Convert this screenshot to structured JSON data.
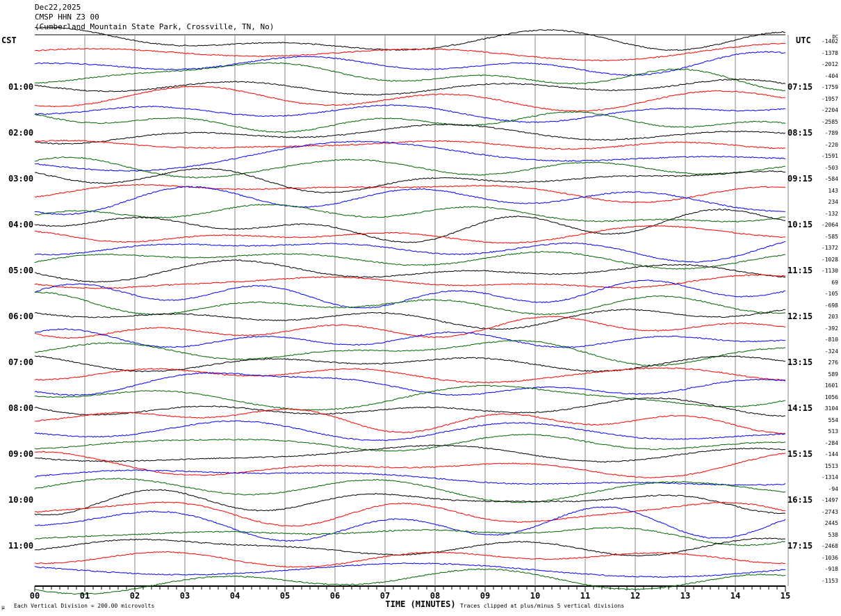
{
  "header": {
    "date": "Dec22,2025",
    "station": "CMSP HHN Z3 00",
    "location": "(Cumberland Mountain State Park, Crossville, TN, No)"
  },
  "left_label": "CST",
  "right_label": "UTC",
  "dc_label": "DC",
  "chart_data": {
    "type": "line",
    "subtype": "helicorder",
    "title": "CMSP HHN Z3 00",
    "xlabel": "TIME (MINUTES)",
    "xlim": [
      0,
      15
    ],
    "x_ticks": [
      "00",
      "01",
      "02",
      "03",
      "04",
      "05",
      "06",
      "07",
      "08",
      "09",
      "10",
      "11",
      "12",
      "13",
      "14",
      "15"
    ],
    "minutes_per_line": 15,
    "line_count": 48,
    "series_colors": [
      "#000000",
      "#ff0000",
      "#0000ff",
      "#006400"
    ],
    "cst_hour_labels": [
      "01:00",
      "02:00",
      "03:00",
      "04:00",
      "05:00",
      "06:00",
      "07:00",
      "08:00",
      "09:00",
      "10:00",
      "11:00"
    ],
    "utc_hour_labels": [
      "07:15",
      "08:15",
      "09:15",
      "10:15",
      "11:15",
      "12:15",
      "13:15",
      "14:15",
      "15:15",
      "16:15",
      "17:15"
    ],
    "dc_offsets": [
      "-1402",
      "-1378",
      "-2012",
      "-404",
      "-1759",
      "-1957",
      "-2204",
      "-2585",
      "-789",
      "-220",
      "-1591",
      "-503",
      "-584",
      "143",
      "234",
      "-132",
      "-2064",
      "-585",
      "-1372",
      "-1028",
      "-1130",
      "69",
      "-105",
      "-698",
      "203",
      "-392",
      "-810",
      "-324",
      "276",
      "589",
      "1601",
      "1056",
      "3104",
      "554",
      "513",
      "-284",
      "-144",
      "1513",
      "-1314",
      "-94",
      "-1497",
      "-2743",
      "2445",
      "538",
      "-2468",
      "-1036",
      "-918",
      "-1153"
    ],
    "scale_note": "Each Vertical Division =  200.00 microvolts",
    "clip_note": "Traces clipped at plus/minus 5 vertical divisions"
  }
}
